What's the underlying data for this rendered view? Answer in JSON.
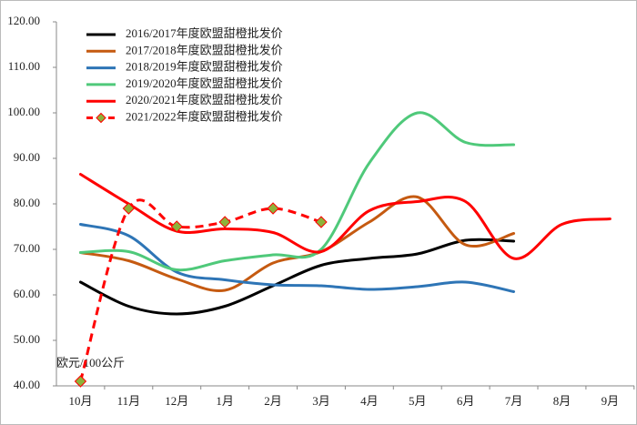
{
  "chart_data": {
    "type": "line",
    "y_annotation": "欧元/100公斤",
    "categories": [
      "10月",
      "11月",
      "12月",
      "1月",
      "2月",
      "3月",
      "4月",
      "5月",
      "6月",
      "7月",
      "8月",
      "9月"
    ],
    "ylim": [
      40,
      120
    ],
    "yticks": [
      {
        "value": 40,
        "label": "40.00"
      },
      {
        "value": 50,
        "label": "50.00"
      },
      {
        "value": 60,
        "label": "60.00"
      },
      {
        "value": 70,
        "label": "70.00"
      },
      {
        "value": 80,
        "label": "80.00"
      },
      {
        "value": 90,
        "label": "90.00"
      },
      {
        "value": 100,
        "label": "100.00"
      },
      {
        "value": 110,
        "label": "110.00"
      },
      {
        "value": 120,
        "label": "120.00"
      }
    ],
    "series": [
      {
        "name": "2016/2017年度欧盟甜橙批发价",
        "color": "#000000",
        "values": [
          62.8,
          57.5,
          55.8,
          57.5,
          62,
          66.5,
          68,
          69,
          72,
          71.8,
          null,
          null
        ]
      },
      {
        "name": "2017/2018年度欧盟甜橙批发价",
        "color": "#c55a11",
        "values": [
          69.3,
          67.5,
          63.5,
          61,
          67,
          69.5,
          76,
          81.5,
          71,
          73.5,
          null,
          null
        ]
      },
      {
        "name": "2018/2019年度欧盟甜橙批发价",
        "color": "#2e75b6",
        "values": [
          75.5,
          73,
          65,
          63.3,
          62.2,
          62,
          61.2,
          61.8,
          62.8,
          60.7,
          null,
          null
        ]
      },
      {
        "name": "2019/2020年度欧盟甜橙批发价",
        "color": "#4fc97a",
        "values": [
          69.3,
          69.5,
          65.5,
          67.5,
          68.8,
          70,
          89,
          100,
          93.5,
          93,
          null,
          null
        ]
      },
      {
        "name": "2020/2021年度欧盟甜橙批发价",
        "color": "#ff0000",
        "values": [
          86.5,
          80,
          74,
          74.5,
          73.7,
          69.5,
          78.5,
          80.5,
          80.5,
          68,
          75.5,
          76.7
        ]
      },
      {
        "name": "2021/2022年度欧盟甜橙批发价",
        "color": "#ff0000",
        "dashed": true,
        "marker_color": "#8db33a",
        "values": [
          41,
          79,
          75,
          76,
          79,
          76,
          null,
          null,
          null,
          null,
          null,
          null
        ]
      }
    ]
  }
}
